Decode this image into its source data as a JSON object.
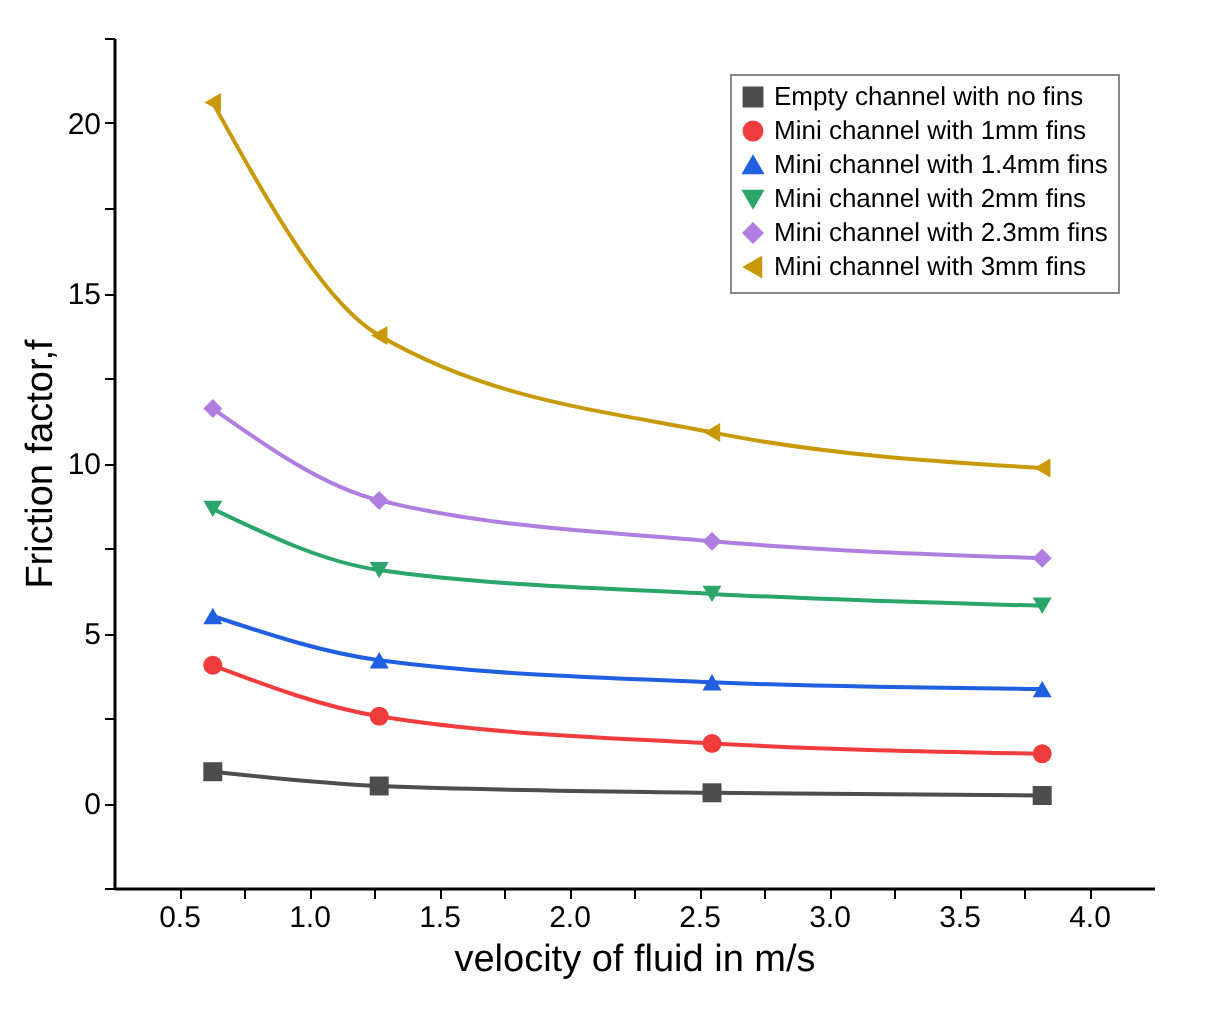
{
  "chart_data": {
    "type": "line",
    "xlabel": "velocity of fluid in m/s",
    "ylabel": "Friction factor,f",
    "x": [
      0.63,
      1.27,
      2.55,
      3.82
    ],
    "series": [
      {
        "name": "Empty channel with no fins",
        "color": "#4d4d4d",
        "marker": "square",
        "values": [
          0.92,
          0.5,
          0.3,
          0.22
        ]
      },
      {
        "name": "Mini channel with 1mm fins",
        "color": "#f03c3c",
        "marker": "circle",
        "values": [
          4.05,
          2.55,
          1.75,
          1.45
        ]
      },
      {
        "name": "Mini channel with 1.4mm fins",
        "color": "#1f5fe0",
        "marker": "triangle",
        "values": [
          5.5,
          4.2,
          3.55,
          3.35
        ]
      },
      {
        "name": "Mini channel with 2mm fins",
        "color": "#2ba66b",
        "marker": "triangle-down",
        "values": [
          8.65,
          6.85,
          6.15,
          5.8
        ]
      },
      {
        "name": "Mini channel with 2.3mm fins",
        "color": "#b07ee0",
        "marker": "diamond",
        "values": [
          11.6,
          8.9,
          7.7,
          7.2
        ]
      },
      {
        "name": "Mini channel with 3mm fins",
        "color": "#c89a0a",
        "marker": "triangle-left",
        "values": [
          20.6,
          13.75,
          10.9,
          9.85
        ]
      }
    ],
    "xlim": [
      0.25,
      4.25
    ],
    "xticks": [
      {
        "value": 0.5,
        "label": "0.5"
      },
      {
        "value": 0.75,
        "label": null
      },
      {
        "value": 1,
        "label": "1.0"
      },
      {
        "value": 1.25,
        "label": null
      },
      {
        "value": 1.5,
        "label": "1.5"
      },
      {
        "value": 1.75,
        "label": null
      },
      {
        "value": 2,
        "label": "2.0"
      },
      {
        "value": 2.25,
        "label": null
      },
      {
        "value": 2.5,
        "label": "2.5"
      },
      {
        "value": 2.75,
        "label": null
      },
      {
        "value": 3,
        "label": "3.0"
      },
      {
        "value": 3.25,
        "label": null
      },
      {
        "value": 3.5,
        "label": "3.5"
      },
      {
        "value": 3.75,
        "label": null
      },
      {
        "value": 4,
        "label": "4.0"
      }
    ],
    "ylim": [
      -2.5,
      22.5
    ],
    "yticks": [
      {
        "value": -2.5,
        "label": null
      },
      0,
      {
        "value": 2.5,
        "label": null
      },
      5,
      {
        "value": 7.5,
        "label": null
      },
      10,
      {
        "value": 12.5,
        "label": null
      },
      15,
      {
        "value": 17.5,
        "label": null
      },
      20,
      {
        "value": 22.5,
        "label": null
      }
    ],
    "grid": false,
    "legend": "top right",
    "line_style": "solid"
  }
}
